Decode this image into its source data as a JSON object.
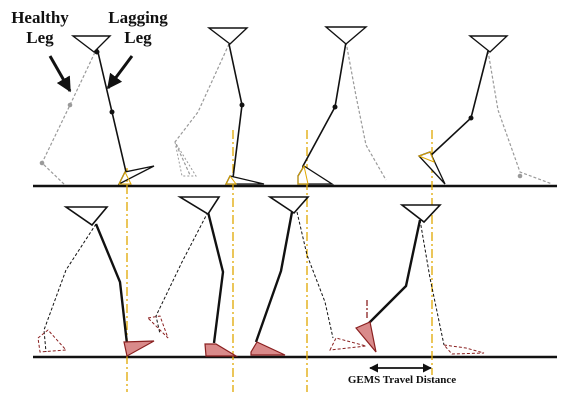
{
  "labels": {
    "healthy_line1": "Healthy",
    "healthy_line2": "Leg",
    "lagging_line1": "Lagging",
    "lagging_line2": "Leg",
    "travel": "GEMS Travel Distance"
  },
  "colors": {
    "ink": "#111111",
    "ghost": "#9a9a9a",
    "guide": "#e0a800",
    "foot_fill": "#d98a8a",
    "foot_stroke": "#8a2020"
  }
}
